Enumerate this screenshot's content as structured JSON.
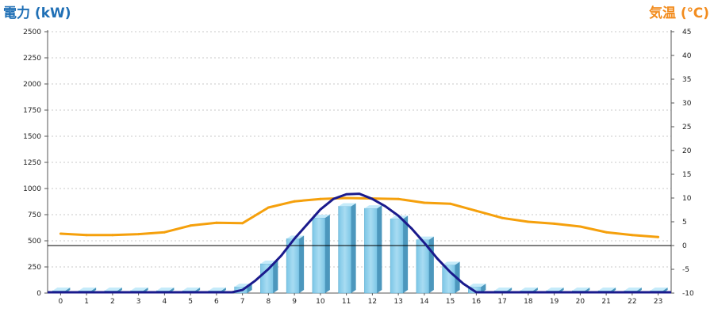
{
  "chart_data": {
    "type": "bar",
    "left_axis_title": "電力 (kW)",
    "right_axis_title": "気温 (℃)",
    "categories": [
      "0",
      "1",
      "2",
      "3",
      "4",
      "5",
      "6",
      "7",
      "8",
      "9",
      "10",
      "11",
      "12",
      "13",
      "14",
      "15",
      "16",
      "17",
      "18",
      "19",
      "20",
      "21",
      "22",
      "23"
    ],
    "y_left": {
      "min": 0,
      "max": 2500,
      "ticks": [
        "0",
        "250",
        "500",
        "750",
        "1000",
        "1250",
        "1500",
        "1750",
        "2000",
        "2250",
        "2500"
      ]
    },
    "y_right": {
      "min": -10,
      "max": 45,
      "ticks": [
        "-10",
        "-5",
        "0",
        "5",
        "10",
        "15",
        "20",
        "25",
        "30",
        "35",
        "40",
        "45"
      ]
    },
    "bars": {
      "axis": "left",
      "color": "#8ecfea",
      "values": [
        0,
        0,
        0,
        0,
        0,
        0,
        0,
        60,
        280,
        520,
        720,
        830,
        810,
        710,
        510,
        270,
        60,
        0,
        0,
        0,
        0,
        0,
        0,
        0
      ]
    },
    "curve": {
      "axis": "left",
      "color": "#1a1a8c",
      "points": [
        [
          6.6,
          0
        ],
        [
          7,
          30
        ],
        [
          7.5,
          120
        ],
        [
          8,
          230
        ],
        [
          8.5,
          360
        ],
        [
          9,
          520
        ],
        [
          9.5,
          660
        ],
        [
          10,
          800
        ],
        [
          10.5,
          900
        ],
        [
          11,
          945
        ],
        [
          11.5,
          950
        ],
        [
          12,
          900
        ],
        [
          12.5,
          830
        ],
        [
          13,
          740
        ],
        [
          13.5,
          620
        ],
        [
          14,
          480
        ],
        [
          14.5,
          330
        ],
        [
          15,
          200
        ],
        [
          15.5,
          90
        ],
        [
          16,
          0
        ]
      ]
    },
    "temperature": {
      "axis": "right",
      "color": "#f5a00c",
      "values": [
        2.5,
        2.2,
        2.2,
        2.4,
        2.8,
        4.2,
        4.8,
        4.7,
        8.0,
        9.3,
        9.8,
        10.0,
        9.9,
        9.8,
        9.0,
        8.8,
        7.3,
        5.8,
        5.0,
        4.6,
        4.0,
        2.8,
        2.2,
        1.8
      ]
    },
    "reference_line": {
      "axis": "right",
      "value": 0,
      "color": "#000000"
    },
    "grid": {
      "horizontal": true,
      "style": "dotted",
      "color": "#c8c8c8"
    }
  }
}
